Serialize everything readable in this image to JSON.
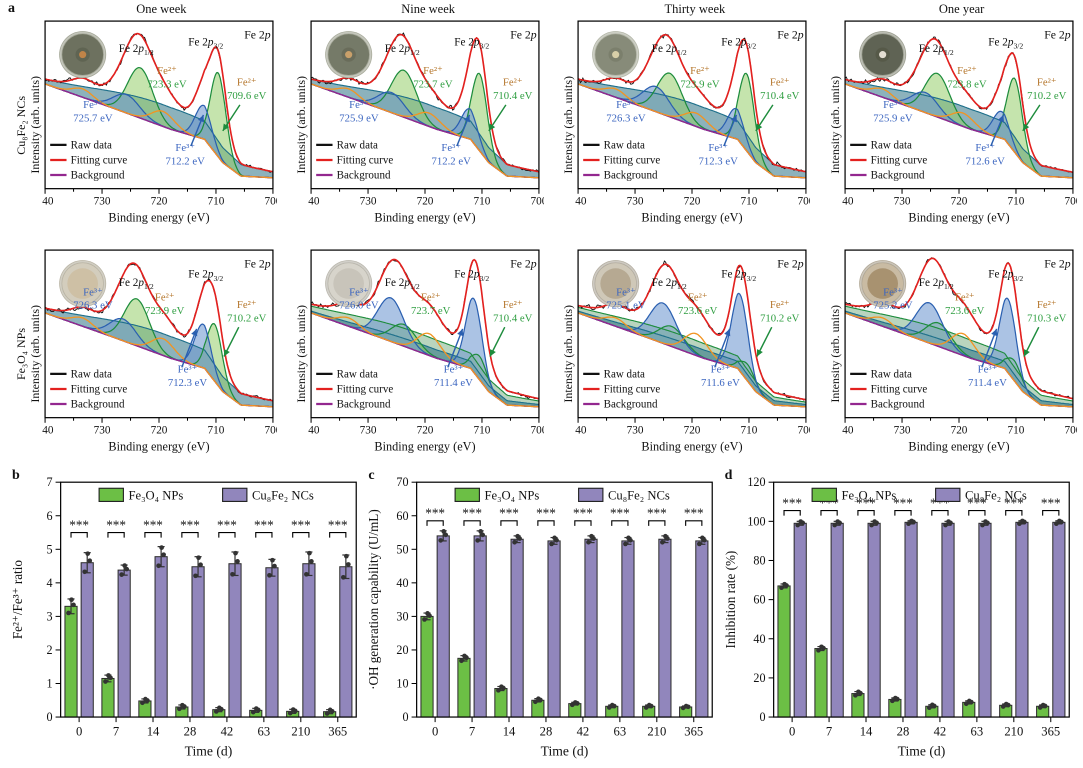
{
  "panel_labels": {
    "a": "a",
    "b": "b",
    "c": "c",
    "d": "d"
  },
  "xps": {
    "column_titles": [
      "One week",
      "Nine week",
      "Thirty week",
      "One year"
    ],
    "row_labels": [
      "Cu₈Fe₂ NCs",
      "Fe₃O₄ NPs"
    ],
    "ylabel": "Intensity (arb. units)",
    "xlabel": "Binding energy (eV)",
    "x_ticks": [
      "740",
      "730",
      "720",
      "710",
      "700"
    ],
    "corner_label": "Fe 2p",
    "peak_labels": {
      "p12": "Fe 2p1/2",
      "p32": "Fe 2p3/2"
    },
    "ion_labels": {
      "fe2": "Fe²⁺",
      "fe3": "Fe³⁺"
    },
    "legend": [
      "Raw data",
      "Fitting curve",
      "Background"
    ]
  },
  "colors": {
    "raw": "#111111",
    "fit": "#e3211f",
    "background_line": "#93278f",
    "satellite": "#f29422",
    "green_line": "#1d8c3c",
    "green_fill": "rgba(150,205,105,0.55)",
    "blue_line": "#2a5fb0",
    "blue_fill": "rgba(115,155,210,0.60)",
    "teal_fill": "rgba(26,102,122,0.50)",
    "teal_line": "#1d6f8a",
    "broad_green_fill": "rgba(70,145,85,0.38)",
    "ion2_text": "#b5762b",
    "ev2_text": "#2f9e41",
    "fe3_text": "#3c66c0",
    "bar_green": "#6cbf45",
    "bar_purple": "#9186bc",
    "bar_edge": "#2b2b2b",
    "dot": "#333333"
  },
  "chart_data": [
    {
      "id": "xps-cu8fe2-one-week",
      "type": "line",
      "panel": "a",
      "sample": "Cu₈Fe₂ NCs",
      "column": "One week",
      "xlabel": "Binding energy (eV)",
      "ylabel": "Intensity (arb. units)",
      "x_range": [
        740,
        700
      ],
      "x_ticks": [
        740,
        730,
        720,
        710,
        700
      ],
      "corner_label": "Fe 2p",
      "fe2_2p12": "723.3 eV",
      "fe2_2p32": "709.6 eV",
      "fe3_2p12": "725.7 eV",
      "fe3_2p32": "712.2 eV",
      "legend": [
        "Raw data",
        "Fitting curve",
        "Background"
      ],
      "dish": {
        "edge": "#a3a696",
        "base": "#6d715f",
        "colony": "#5f6351",
        "dot": "#c08448"
      }
    },
    {
      "id": "xps-cu8fe2-nine-week",
      "type": "line",
      "panel": "a",
      "sample": "Cu₈Fe₂ NCs",
      "column": "Nine week",
      "xlabel": "Binding energy (eV)",
      "ylabel": "Intensity (arb. units)",
      "x_range": [
        740,
        700
      ],
      "x_ticks": [
        740,
        730,
        720,
        710,
        700
      ],
      "corner_label": "Fe 2p",
      "fe2_2p12": "723.7 eV",
      "fe2_2p32": "710.4 eV",
      "fe3_2p12": "725.9 eV",
      "fe3_2p32": "712.2 eV",
      "legend": [
        "Raw data",
        "Fitting curve",
        "Background"
      ],
      "dish": {
        "edge": "#a8ab9b",
        "base": "#757a68",
        "colony": "#686c5a",
        "dot": "#c9a06a"
      }
    },
    {
      "id": "xps-cu8fe2-thirty-week",
      "type": "line",
      "panel": "a",
      "sample": "Cu₈Fe₂ NCs",
      "column": "Thirty week",
      "xlabel": "Binding energy (eV)",
      "ylabel": "Intensity (arb. units)",
      "x_range": [
        740,
        700
      ],
      "x_ticks": [
        740,
        730,
        720,
        710,
        700
      ],
      "corner_label": "Fe 2p",
      "fe2_2p12": "723.9 eV",
      "fe2_2p32": "710.4 eV",
      "fe3_2p12": "726.3 eV",
      "fe3_2p32": "712.3 eV",
      "legend": [
        "Raw data",
        "Fitting curve",
        "Background"
      ],
      "dish": {
        "edge": "#b2b5a6",
        "base": "#878b79",
        "colony": "#7a7e6c",
        "dot": "#d8cfa8"
      }
    },
    {
      "id": "xps-cu8fe2-one-year",
      "type": "line",
      "panel": "a",
      "sample": "Cu₈Fe₂ NCs",
      "column": "One year",
      "xlabel": "Binding energy (eV)",
      "ylabel": "Intensity (arb. units)",
      "x_range": [
        740,
        700
      ],
      "x_ticks": [
        740,
        730,
        720,
        710,
        700
      ],
      "corner_label": "Fe 2p",
      "fe2_2p12": "723.8 eV",
      "fe2_2p32": "710.2 eV",
      "fe3_2p12": "725.9 eV",
      "fe3_2p32": "712.6 eV",
      "legend": [
        "Raw data",
        "Fitting curve",
        "Background"
      ],
      "dish": {
        "edge": "#999c8d",
        "base": "#5f6354",
        "colony": "#555948",
        "dot": "#e3ded2"
      }
    },
    {
      "id": "xps-fe3o4-one-week",
      "type": "line",
      "panel": "a",
      "sample": "Fe₃O₄ NPs",
      "column": "One week",
      "xlabel": "Binding energy (eV)",
      "ylabel": "Intensity (arb. units)",
      "x_range": [
        740,
        700
      ],
      "x_ticks": [
        740,
        730,
        720,
        710,
        700
      ],
      "corner_label": "Fe 2p",
      "fe2_2p12": "723.9 eV",
      "fe2_2p32": "710.2 eV",
      "fe3_2p12": "726.3 eV",
      "fe3_2p32": "712.3 eV",
      "legend": [
        "Raw data",
        "Fitting curve",
        "Background"
      ],
      "dish": {
        "edge": "#b9b4a4",
        "base": "#d3cdbd",
        "colony": "#cdbfa3"
      }
    },
    {
      "id": "xps-fe3o4-nine-week",
      "type": "line",
      "panel": "a",
      "sample": "Fe₃O₄ NPs",
      "column": "Nine week",
      "xlabel": "Binding energy (eV)",
      "ylabel": "Intensity (arb. units)",
      "x_range": [
        740,
        700
      ],
      "x_ticks": [
        740,
        730,
        720,
        710,
        700
      ],
      "corner_label": "Fe 2p",
      "fe2_2p12": "723.7 eV",
      "fe2_2p32": "710.4 eV",
      "fe3_2p12": "726.0 eV",
      "fe3_2p32": "711.4 eV",
      "legend": [
        "Raw data",
        "Fitting curve",
        "Background"
      ],
      "dish": {
        "edge": "#b9b6ac",
        "base": "#d7d4cb",
        "colony": "#c7c3b8"
      }
    },
    {
      "id": "xps-fe3o4-thirty-week",
      "type": "line",
      "panel": "a",
      "sample": "Fe₃O₄ NPs",
      "column": "Thirty week",
      "xlabel": "Binding energy (eV)",
      "ylabel": "Intensity (arb. units)",
      "x_range": [
        740,
        700
      ],
      "x_ticks": [
        740,
        730,
        720,
        710,
        700
      ],
      "corner_label": "Fe 2p",
      "fe2_2p12": "723.6 eV",
      "fe2_2p32": "710.2 eV",
      "fe3_2p12": "725.1 eV",
      "fe3_2p32": "711.6 eV",
      "legend": [
        "Raw data",
        "Fitting curve",
        "Background"
      ],
      "dish": {
        "edge": "#b3ada0",
        "base": "#cfc8b8",
        "colony": "#b4a88f"
      }
    },
    {
      "id": "xps-fe3o4-one-year",
      "type": "line",
      "panel": "a",
      "sample": "Fe₃O₄ NPs",
      "column": "One year",
      "xlabel": "Binding energy (eV)",
      "ylabel": "Intensity (arb. units)",
      "x_range": [
        740,
        700
      ],
      "x_ticks": [
        740,
        730,
        720,
        710,
        700
      ],
      "corner_label": "Fe 2p",
      "fe2_2p12": "723.6 eV",
      "fe2_2p32": "710.3 eV",
      "fe3_2p12": "725.2 eV",
      "fe3_2p32": "711.4 eV",
      "legend": [
        "Raw data",
        "Fitting curve",
        "Background"
      ],
      "dish": {
        "edge": "#b0a795",
        "base": "#c9bba3",
        "colony": "#a78f6e"
      }
    },
    {
      "id": "panel-b",
      "type": "bar",
      "panel": "b",
      "categories": [
        "0",
        "7",
        "14",
        "28",
        "42",
        "63",
        "210",
        "365"
      ],
      "xlabel": "Time (d)",
      "ylabel": "Fe²⁺/Fe³⁺ ratio",
      "ylim": [
        0,
        7
      ],
      "ytick_step": 1,
      "series": [
        {
          "name": "Fe₃O₄ NPs",
          "color": "#6cbf45",
          "values": [
            3.3,
            1.15,
            0.48,
            0.3,
            0.22,
            0.2,
            0.17,
            0.16
          ],
          "errors": [
            0.22,
            0.1,
            0.06,
            0.06,
            0.06,
            0.06,
            0.06,
            0.06
          ]
        },
        {
          "name": "Cu₈Fe₂ NCs",
          "color": "#9186bc",
          "values": [
            4.6,
            4.38,
            4.78,
            4.48,
            4.57,
            4.45,
            4.57,
            4.48
          ],
          "errors": [
            0.3,
            0.15,
            0.3,
            0.3,
            0.35,
            0.25,
            0.35,
            0.35
          ]
        }
      ],
      "significance": {
        "label": "***",
        "y": 5.5
      }
    },
    {
      "id": "panel-c",
      "type": "bar",
      "panel": "c",
      "categories": [
        "0",
        "7",
        "14",
        "28",
        "42",
        "63",
        "210",
        "365"
      ],
      "xlabel": "Time (d)",
      "ylabel": "·OH generation capability (U/mL)",
      "ylim": [
        0,
        70
      ],
      "ytick_step": 10,
      "series": [
        {
          "name": "Fe₃O₄ NPs",
          "color": "#6cbf45",
          "values": [
            30,
            17.5,
            8.5,
            5,
            4,
            3.2,
            3.2,
            3
          ],
          "errors": [
            1,
            0.8,
            0.6,
            0.5,
            0.4,
            0.4,
            0.4,
            0.3
          ]
        },
        {
          "name": "Cu₈Fe₂ NCs",
          "color": "#9186bc",
          "values": [
            54,
            54,
            53,
            52.5,
            53,
            52.5,
            53,
            52.5
          ],
          "errors": [
            1.5,
            1.5,
            1,
            1,
            1,
            1,
            1,
            1
          ]
        }
      ],
      "significance": {
        "label": "***",
        "y": 58.5
      }
    },
    {
      "id": "panel-d",
      "type": "bar",
      "panel": "d",
      "categories": [
        "0",
        "7",
        "14",
        "28",
        "42",
        "63",
        "210",
        "365"
      ],
      "xlabel": "Time (d)",
      "ylabel": "Inhibition rate (%)",
      "ylim": [
        0,
        120
      ],
      "ytick_step": 20,
      "series": [
        {
          "name": "Fe₃O₄ NPs",
          "color": "#6cbf45",
          "values": [
            67,
            35,
            12,
            9,
            5.5,
            7.5,
            6,
            5.5
          ],
          "errors": [
            1,
            1,
            1,
            0.8,
            0.8,
            0.8,
            0.7,
            0.7
          ]
        },
        {
          "name": "Cu₈Fe₂ NCs",
          "color": "#9186bc",
          "values": [
            99,
            99,
            99,
            99.5,
            99,
            99,
            99.5,
            99.5
          ],
          "errors": [
            1,
            1,
            1,
            0.8,
            1,
            1,
            0.8,
            0.8
          ]
        }
      ],
      "significance": {
        "label": "***",
        "y": 105.5
      }
    }
  ]
}
